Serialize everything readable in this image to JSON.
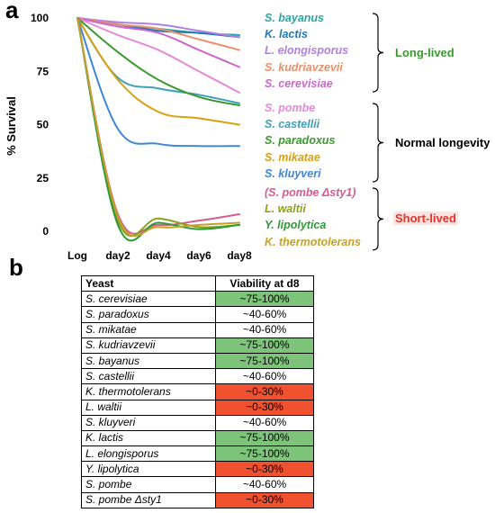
{
  "panel_a_label": "a",
  "panel_b_label": "b",
  "chart_data": {
    "type": "line",
    "ylabel": "% Survival",
    "xlabel": "",
    "categories": [
      "Log",
      "day2",
      "day4",
      "day6",
      "day8"
    ],
    "yticks": [
      0,
      25,
      50,
      75,
      100
    ],
    "ylim": [
      0,
      100
    ],
    "series": [
      {
        "name": "S. bayanus",
        "color": "#2aa6a0",
        "values": [
          100,
          97,
          95,
          93,
          92
        ]
      },
      {
        "name": "K. lactis",
        "color": "#2277b5",
        "values": [
          100,
          97,
          94,
          93,
          91
        ]
      },
      {
        "name": "L. elongisporus",
        "color": "#b07fe3",
        "values": [
          100,
          98,
          97,
          94,
          91
        ]
      },
      {
        "name": "S. kudriavzevii",
        "color": "#e8906a",
        "values": [
          100,
          97,
          95,
          90,
          85
        ]
      },
      {
        "name": "S. cerevisiae",
        "color": "#cc66cc",
        "values": [
          100,
          96,
          93,
          85,
          77
        ]
      },
      {
        "name": "S. pombe",
        "color": "#e48ad6",
        "values": [
          100,
          92,
          85,
          75,
          65
        ]
      },
      {
        "name": "S. castellii",
        "color": "#3da0b8",
        "values": [
          100,
          72,
          67,
          64,
          60
        ]
      },
      {
        "name": "S. paradoxus",
        "color": "#3a9a2e",
        "values": [
          100,
          84,
          71,
          63,
          59
        ]
      },
      {
        "name": "S. mikatae",
        "color": "#d9a00f",
        "values": [
          100,
          71,
          56,
          53,
          50
        ]
      },
      {
        "name": "S. kluyveri",
        "color": "#3f86d6",
        "values": [
          100,
          48,
          41,
          40,
          40
        ]
      },
      {
        "name": "(S. pombe Δsty1)",
        "color": "#d65b8f",
        "values": [
          100,
          8,
          3,
          5,
          8
        ]
      },
      {
        "name": "L. waltii",
        "color": "#8aa11b",
        "values": [
          100,
          5,
          6,
          2,
          3
        ]
      },
      {
        "name": "Y. lipolytica",
        "color": "#2c9a35",
        "values": [
          100,
          3,
          4,
          1,
          3
        ]
      },
      {
        "name": "K. thermotolerans",
        "color": "#c7a02a",
        "values": [
          100,
          7,
          2,
          3,
          4
        ]
      }
    ]
  },
  "legend_groups": [
    {
      "label": "Long-lived",
      "color": "#3a9a2e",
      "background": "transparent",
      "items": [
        "S. bayanus",
        "K. lactis",
        "L. elongisporus",
        "S. kudriavzevii",
        "S. cerevisiae"
      ]
    },
    {
      "label": "Normal longevity",
      "color": "#000000",
      "background": "transparent",
      "items": [
        "S. pombe",
        "S. castellii",
        "S. paradoxus",
        "S. mikatae",
        "S. kluyveri"
      ]
    },
    {
      "label": "Short-lived",
      "color": "#e0342a",
      "background": "#fde4e0",
      "items": [
        "(S. pombe Δsty1)",
        "L. waltii",
        "Y. lipolytica",
        "K. thermotolerans"
      ]
    }
  ],
  "table": {
    "headers": [
      "Yeast",
      "Viability at d8"
    ],
    "rows": [
      {
        "yeast": "S. cerevisiae",
        "viability": "~75-100%",
        "category": "high"
      },
      {
        "yeast": "S. paradoxus",
        "viability": "~40-60%",
        "category": "mid"
      },
      {
        "yeast": "S. mikatae",
        "viability": "~40-60%",
        "category": "mid"
      },
      {
        "yeast": "S. kudriavzevii",
        "viability": "~75-100%",
        "category": "high"
      },
      {
        "yeast": "S. bayanus",
        "viability": "~75-100%",
        "category": "high"
      },
      {
        "yeast": "S. castellii",
        "viability": "~40-60%",
        "category": "mid"
      },
      {
        "yeast": "K. thermotolerans",
        "viability": "~0-30%",
        "category": "low"
      },
      {
        "yeast": "L. waltii",
        "viability": "~0-30%",
        "category": "low"
      },
      {
        "yeast": "S. kluyveri",
        "viability": "~40-60%",
        "category": "mid"
      },
      {
        "yeast": "K. lactis",
        "viability": "~75-100%",
        "category": "high"
      },
      {
        "yeast": "L. elongisporus",
        "viability": "~75-100%",
        "category": "high"
      },
      {
        "yeast": "Y. lipolytica",
        "viability": "~0-30%",
        "category": "low"
      },
      {
        "yeast": "S. pombe",
        "viability": "~40-60%",
        "category": "mid"
      },
      {
        "yeast": "S. pombe Δsty1",
        "viability": "~0-30%",
        "category": "low"
      }
    ]
  }
}
